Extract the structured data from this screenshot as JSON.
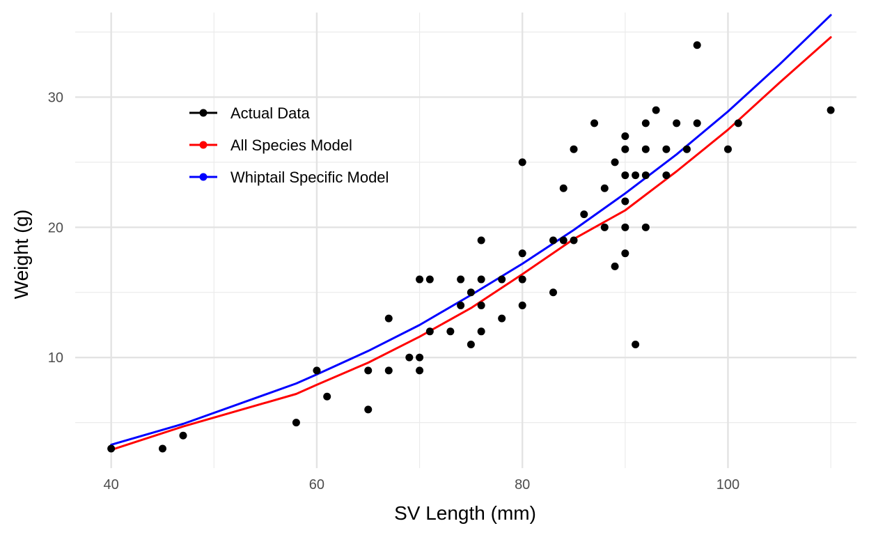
{
  "chart_data": {
    "type": "scatter",
    "title": "",
    "xlabel": "SV Length (mm)",
    "ylabel": "Weight (g)",
    "xlim": [
      36.5,
      112.5
    ],
    "ylim": [
      1.5,
      36.5
    ],
    "x_ticks": [
      40,
      60,
      80,
      100
    ],
    "x_tick_labels": [
      "40",
      "60",
      "80",
      "100"
    ],
    "x_minor_ticks": [
      50,
      70,
      90,
      110
    ],
    "y_ticks": [
      10,
      20,
      30
    ],
    "y_tick_labels": [
      "10",
      "20",
      "30"
    ],
    "y_minor_ticks": [
      5,
      15,
      25,
      35
    ],
    "grid": true,
    "legend": {
      "position": "top-left-inside",
      "entries": [
        "Actual Data",
        "All Species Model",
        "Whiptail Specific Model"
      ]
    },
    "series": [
      {
        "name": "Actual Data",
        "kind": "points",
        "color": "#000000",
        "points": [
          [
            40,
            3
          ],
          [
            45,
            3
          ],
          [
            47,
            4
          ],
          [
            58,
            5
          ],
          [
            60,
            9
          ],
          [
            61,
            7
          ],
          [
            65,
            9
          ],
          [
            65,
            6
          ],
          [
            67,
            13
          ],
          [
            67,
            9
          ],
          [
            69,
            10
          ],
          [
            70,
            16
          ],
          [
            70,
            10
          ],
          [
            70,
            9
          ],
          [
            71,
            16
          ],
          [
            71,
            12
          ],
          [
            73,
            12
          ],
          [
            74,
            16
          ],
          [
            74,
            14
          ],
          [
            75,
            15
          ],
          [
            75,
            11
          ],
          [
            76,
            19
          ],
          [
            76,
            16
          ],
          [
            76,
            14
          ],
          [
            76,
            12
          ],
          [
            78,
            16
          ],
          [
            78,
            13
          ],
          [
            80,
            25
          ],
          [
            80,
            18
          ],
          [
            80,
            16
          ],
          [
            80,
            14
          ],
          [
            83,
            19
          ],
          [
            83,
            15
          ],
          [
            84,
            23
          ],
          [
            84,
            19
          ],
          [
            85,
            26
          ],
          [
            85,
            19
          ],
          [
            86,
            21
          ],
          [
            87,
            28
          ],
          [
            88,
            23
          ],
          [
            88,
            20
          ],
          [
            89,
            25
          ],
          [
            89,
            17
          ],
          [
            90,
            27
          ],
          [
            90,
            26
          ],
          [
            90,
            24
          ],
          [
            90,
            22
          ],
          [
            90,
            20
          ],
          [
            90,
            18
          ],
          [
            91,
            24
          ],
          [
            91,
            11
          ],
          [
            92,
            28
          ],
          [
            92,
            26
          ],
          [
            92,
            24
          ],
          [
            92,
            20
          ],
          [
            93,
            29
          ],
          [
            94,
            26
          ],
          [
            94,
            24
          ],
          [
            95,
            28
          ],
          [
            96,
            26
          ],
          [
            97,
            34
          ],
          [
            97,
            28
          ],
          [
            100,
            26
          ],
          [
            101,
            28
          ],
          [
            110,
            29
          ]
        ]
      },
      {
        "name": "All Species Model",
        "kind": "line",
        "color": "#ff0000",
        "x": [
          40,
          47,
          58,
          60,
          65,
          70,
          75,
          80,
          85,
          90,
          95,
          100,
          105,
          110
        ],
        "y": [
          2.9,
          4.7,
          7.2,
          7.9,
          9.6,
          11.6,
          13.8,
          16.4,
          19.1,
          21.3,
          24.3,
          27.5,
          31.1,
          34.6
        ]
      },
      {
        "name": "Whiptail Specific Model",
        "kind": "line",
        "color": "#0000ff",
        "x": [
          40,
          47,
          58,
          60,
          65,
          70,
          75,
          80,
          85,
          90,
          95,
          100,
          105,
          110
        ],
        "y": [
          3.3,
          4.9,
          8.0,
          8.7,
          10.5,
          12.5,
          14.8,
          17.2,
          19.8,
          22.6,
          25.6,
          28.9,
          32.5,
          36.3
        ]
      }
    ]
  }
}
